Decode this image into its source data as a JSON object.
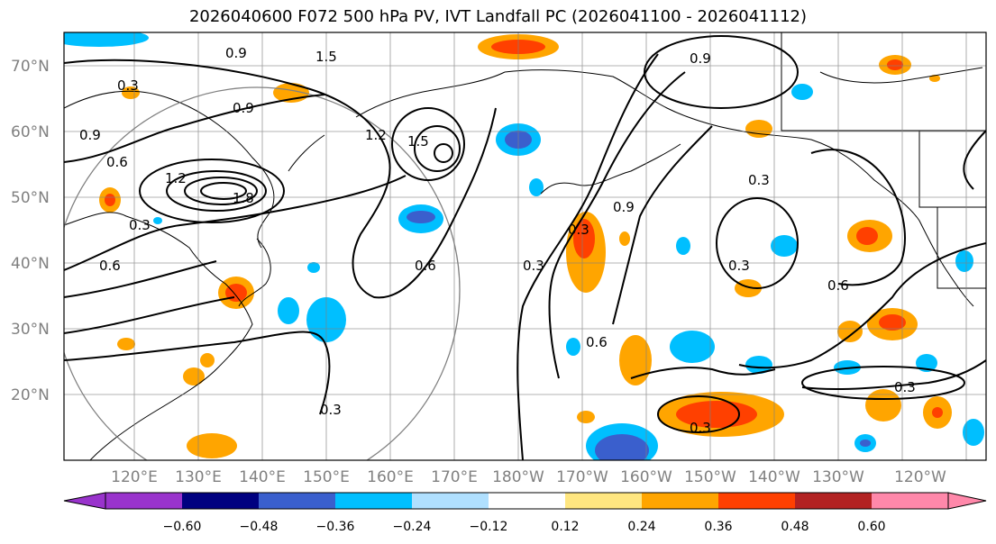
{
  "title": "2026040600 F072 500 hPa PV, IVT Landfall PC (2026041100 - 2026041112)",
  "latitude_labels": [
    "70°N",
    "60°N",
    "50°N",
    "40°N",
    "30°N",
    "20°N"
  ],
  "longitude_labels": [
    "120°E",
    "130°E",
    "140°E",
    "150°E",
    "160°E",
    "170°E",
    "180°W",
    "170°W",
    "160°W",
    "150°W",
    "140°W",
    "130°W",
    "120°W"
  ],
  "colorbar": {
    "ticks": [
      "−0.60",
      "−0.48",
      "−0.36",
      "−0.24",
      "−0.12",
      "0.12",
      "0.24",
      "0.36",
      "0.48",
      "0.60"
    ],
    "colors": [
      "#9933cc",
      "#000080",
      "#3a5fcd",
      "#00bfff",
      "#b0e0ff",
      "#ffffff",
      "#ffe680",
      "#ffa500",
      "#ff4000",
      "#b22222",
      "#ff88aa"
    ]
  },
  "contour_labels": [
    "0.9",
    "1.5",
    "0.3",
    "0.9",
    "0.9",
    "0.6",
    "1.2",
    "1.5",
    "1.2",
    "0.3",
    "1.8",
    "0.6",
    "0.6",
    "0.3",
    "0.3",
    "0.9",
    "0.6",
    "0.3",
    "0.3",
    "0.6",
    "0.3",
    "0.3",
    "0.9",
    "0.3"
  ],
  "colors": {
    "land_border": "#000000",
    "grid": "#808080",
    "circle": "#808080"
  }
}
